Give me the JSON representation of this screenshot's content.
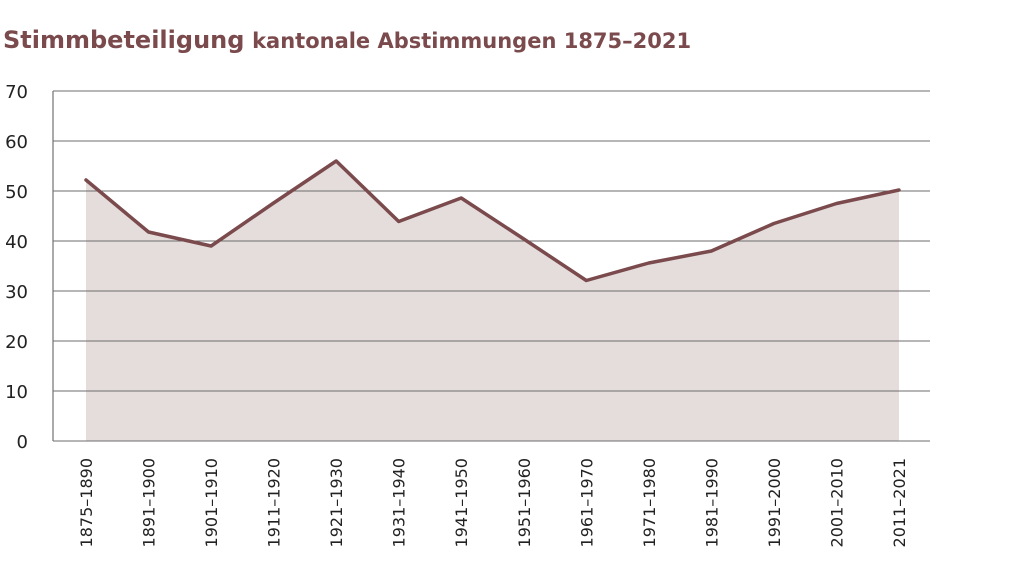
{
  "title": {
    "main": "Stimmbeteiligung",
    "sub": "kantonale Abstimmungen 1875–2021"
  },
  "colors": {
    "title": "#7a4a4d",
    "line": "#7a4a4d",
    "area": "#e5dcdc"
  },
  "chart_data": {
    "type": "area",
    "categories": [
      "1875–1890",
      "1891–1900",
      "1901–1910",
      "1911–1920",
      "1921–1930",
      "1931–1940",
      "1941–1950",
      "1951–1960",
      "1961–1970",
      "1971–1980",
      "1981–1990",
      "1991–2000",
      "2001–2010",
      "2011–2021"
    ],
    "values": [
      52.2,
      41.8,
      39.0,
      47.6,
      56.0,
      43.9,
      48.6,
      40.4,
      32.1,
      35.6,
      38.0,
      43.5,
      47.5,
      50.2
    ],
    "yticks": [
      0,
      10,
      20,
      30,
      40,
      50,
      60,
      70
    ],
    "ylim": [
      0,
      70
    ],
    "grid": true,
    "legend": "none"
  }
}
